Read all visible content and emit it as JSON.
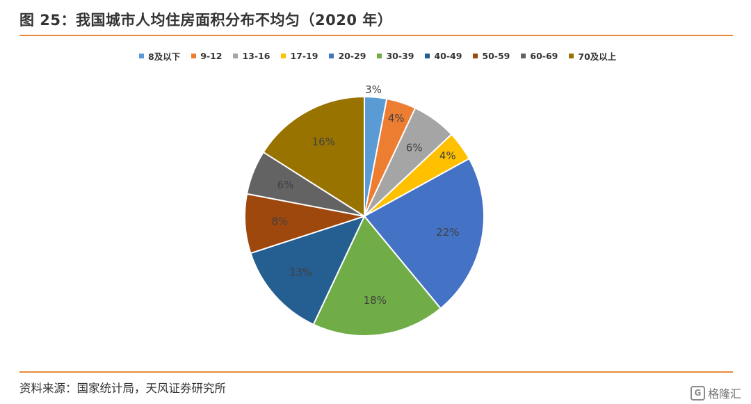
{
  "title": "图 25：我国城市人均住房面积分布不均匀（2020 年）",
  "source": "资料来源：国家统计局，天风证券研究所",
  "watermark": {
    "text": "格隆汇",
    "icon": "glh-logo-icon"
  },
  "colors": {
    "accent_rule": "#e8893a"
  },
  "chart_data": {
    "type": "pie",
    "legend_position": "top",
    "start_angle": "12 o'clock",
    "direction": "clockwise",
    "slices": [
      {
        "label": "8及以下",
        "value": 3,
        "value_label": "3%",
        "color": "#5b9bd5"
      },
      {
        "label": "9-12",
        "value": 4,
        "value_label": "4%",
        "color": "#ed7d31"
      },
      {
        "label": "13-16",
        "value": 6,
        "value_label": "6%",
        "color": "#a5a5a5"
      },
      {
        "label": "17-19",
        "value": 4,
        "value_label": "4%",
        "color": "#ffc000"
      },
      {
        "label": "20-29",
        "value": 22,
        "value_label": "22%",
        "color": "#4472c4"
      },
      {
        "label": "30-39",
        "value": 18,
        "value_label": "18%",
        "color": "#70ad47"
      },
      {
        "label": "40-49",
        "value": 13,
        "value_label": "13%",
        "color": "#255e91"
      },
      {
        "label": "50-59",
        "value": 8,
        "value_label": "8%",
        "color": "#9e480e"
      },
      {
        "label": "60-69",
        "value": 6,
        "value_label": "6%",
        "color": "#636363"
      },
      {
        "label": "70及以上",
        "value": 16,
        "value_label": "16%",
        "color": "#997300"
      }
    ]
  }
}
